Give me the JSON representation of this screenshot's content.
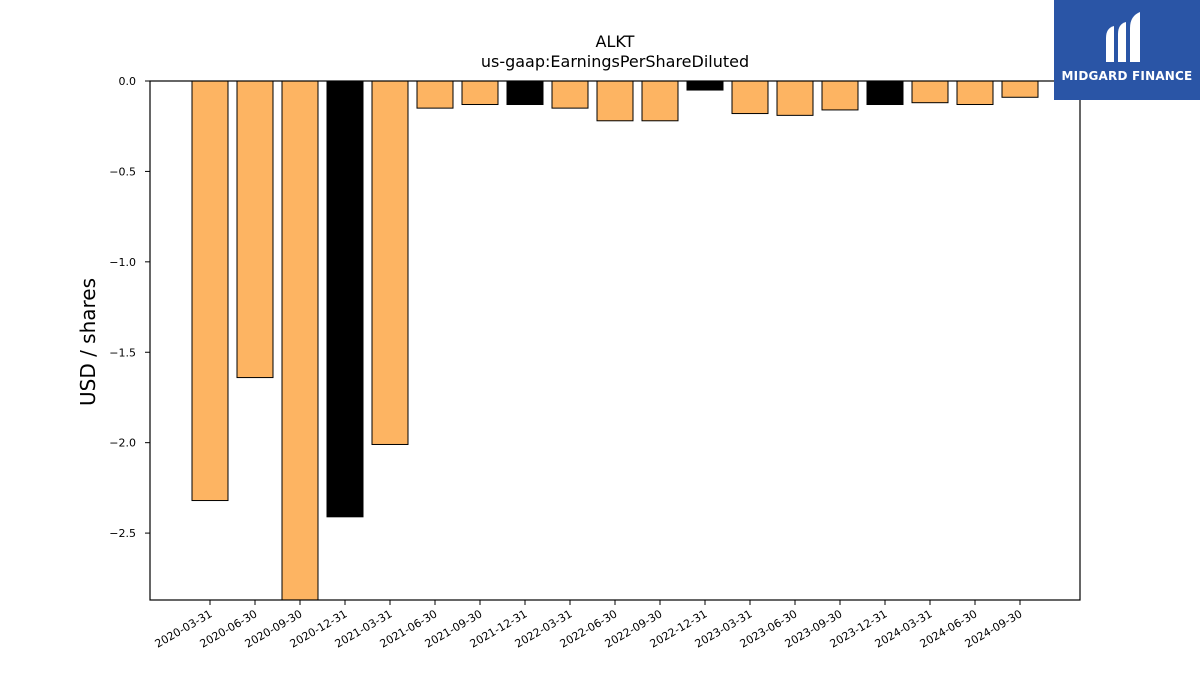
{
  "chart_data": {
    "type": "bar",
    "title": "ALKT",
    "subtitle": "us-gaap:EarningsPerShareDiluted",
    "xlabel": "",
    "ylabel": "USD / shares",
    "ylim": [
      -2.87,
      0.0
    ],
    "yticks": [
      0.0,
      -0.5,
      -1.0,
      -1.5,
      -2.0,
      -2.5
    ],
    "ytick_labels": [
      "0.0",
      "−0.5",
      "−1.0",
      "−1.5",
      "−2.0",
      "−2.5"
    ],
    "grid": false,
    "categories": [
      "2020-03-31",
      "2020-06-30",
      "2020-09-30",
      "2020-12-31",
      "2021-03-31",
      "2021-06-30",
      "2021-09-30",
      "2021-12-31",
      "2022-03-31",
      "2022-06-30",
      "2022-09-30",
      "2022-12-31",
      "2023-03-31",
      "2023-06-30",
      "2023-09-30",
      "2023-12-31",
      "2024-03-31",
      "2024-06-30",
      "2024-09-30"
    ],
    "values": [
      -2.32,
      -1.64,
      -2.87,
      -2.41,
      -2.01,
      -0.15,
      -0.13,
      -0.13,
      -0.15,
      -0.22,
      -0.22,
      -0.05,
      -0.18,
      -0.19,
      -0.16,
      -0.13,
      -0.12,
      -0.13,
      -0.09
    ],
    "highlight": [
      false,
      false,
      false,
      true,
      false,
      false,
      false,
      true,
      false,
      false,
      false,
      true,
      false,
      false,
      false,
      true,
      false,
      false,
      false
    ],
    "colors": {
      "bar": "#fdb462",
      "highlight": "#000000",
      "edge": "#000000"
    }
  },
  "logo": {
    "text": "MIDGARD FINANCE",
    "background": "#2a55a6"
  }
}
